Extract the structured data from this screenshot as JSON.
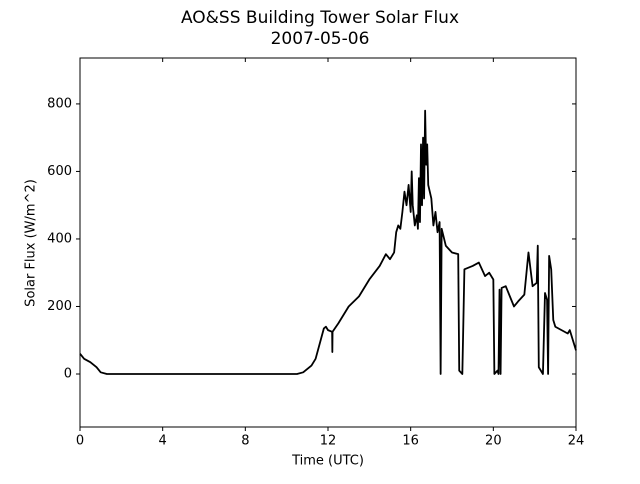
{
  "chart_data": {
    "type": "line",
    "title": "AO&SS Building Tower Solar Flux",
    "subtitle": "2007-05-06",
    "x_label": "Time (UTC)",
    "y_label": "Solar Flux (W/m^2)",
    "xlim": [
      0,
      24
    ],
    "xticks": [
      0,
      4,
      8,
      12,
      16,
      20,
      24
    ],
    "ylim": [
      -157,
      936
    ],
    "yticks": [
      0,
      200,
      400,
      600,
      800
    ],
    "series": [
      {
        "color": "#000000",
        "x": [
          0,
          0.2,
          0.5,
          0.8,
          1.0,
          1.3,
          2,
          4,
          6,
          8,
          10,
          10.5,
          10.8,
          11.0,
          11.2,
          11.4,
          11.6,
          11.8,
          11.9,
          12.0,
          12.2,
          12.21,
          12.22,
          12.5,
          13.0,
          13.5,
          14.0,
          14.5,
          14.8,
          15.0,
          15.2,
          15.3,
          15.4,
          15.5,
          15.6,
          15.7,
          15.8,
          15.9,
          16.0,
          16.05,
          16.1,
          16.2,
          16.3,
          16.35,
          16.4,
          16.45,
          16.5,
          16.55,
          16.6,
          16.65,
          16.7,
          16.75,
          16.8,
          16.85,
          17.0,
          17.1,
          17.2,
          17.3,
          17.4,
          17.45,
          17.5,
          17.7,
          18.0,
          18.3,
          18.35,
          18.5,
          18.6,
          19.0,
          19.3,
          19.6,
          19.8,
          20.0,
          20.05,
          20.2,
          20.25,
          20.3,
          20.35,
          20.4,
          20.6,
          20.8,
          21.0,
          21.2,
          21.5,
          21.7,
          21.9,
          22.1,
          22.15,
          22.2,
          22.4,
          22.5,
          22.6,
          22.65,
          22.7,
          22.8,
          22.9,
          23.0,
          23.3,
          23.6,
          23.7,
          24.0
        ],
        "values": [
          60,
          45,
          35,
          20,
          5,
          0,
          0,
          0,
          0,
          0,
          0,
          0,
          5,
          15,
          25,
          45,
          90,
          135,
          140,
          130,
          125,
          65,
          125,
          150,
          200,
          230,
          280,
          320,
          355,
          340,
          360,
          420,
          440,
          430,
          480,
          540,
          500,
          560,
          480,
          600,
          500,
          440,
          470,
          430,
          580,
          450,
          680,
          500,
          700,
          520,
          780,
          620,
          680,
          560,
          520,
          440,
          480,
          420,
          450,
          0,
          430,
          380,
          360,
          355,
          10,
          0,
          310,
          320,
          330,
          290,
          300,
          280,
          0,
          10,
          0,
          250,
          0,
          255,
          260,
          230,
          200,
          215,
          235,
          360,
          260,
          270,
          380,
          20,
          0,
          240,
          220,
          0,
          350,
          310,
          160,
          140,
          130,
          120,
          130,
          70
        ]
      }
    ]
  }
}
